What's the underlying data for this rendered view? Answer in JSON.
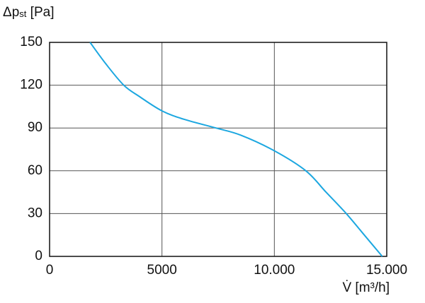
{
  "chart_data": {
    "type": "line",
    "y_label": [
      "Δp",
      "st",
      " [Pa]"
    ],
    "x_label": "V̇ [m³/h]",
    "x": [
      1800,
      2500,
      3300,
      4000,
      5000,
      6000,
      7400,
      8500,
      10000,
      11400,
      12300,
      13200,
      14000,
      14800
    ],
    "series": [
      {
        "color": "#1ca7e0",
        "values": [
          150,
          135,
          120,
          112,
          102,
          96,
          90,
          85,
          74,
          60,
          45,
          30,
          15,
          0
        ]
      }
    ],
    "xlim": [
      0,
      15000
    ],
    "xticks": [
      0,
      5000,
      {
        "value": 10000,
        "label": "10.000"
      },
      {
        "value": 15000,
        "label": "15.000"
      }
    ],
    "ylim": [
      0,
      150
    ],
    "yticks": [
      0,
      30,
      60,
      90,
      120,
      150
    ],
    "grid": true
  }
}
